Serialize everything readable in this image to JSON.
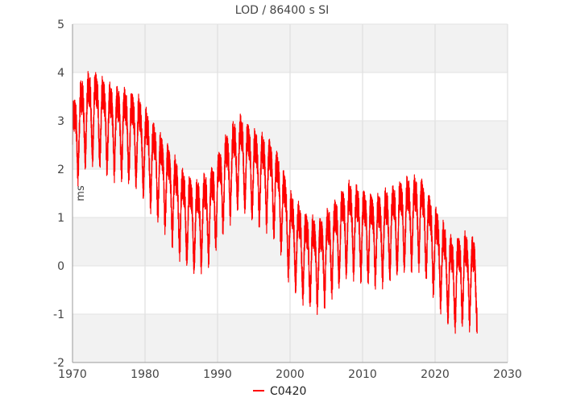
{
  "chart_data": {
    "type": "line",
    "title": "LOD / 86400 s SI",
    "xlabel": "",
    "ylabel": "ms",
    "xlim": [
      1970,
      2030
    ],
    "ylim": [
      -2,
      5
    ],
    "x_ticks": [
      "1970",
      "1980",
      "1990",
      "2000",
      "2010",
      "2020",
      "2030"
    ],
    "y_ticks": [
      "-2",
      "-1",
      "0",
      "1",
      "2",
      "3",
      "4",
      "5"
    ],
    "grid": true,
    "legend_position": "bottom-center",
    "series": [
      {
        "name": "C0420",
        "color": "#ff0000",
        "trend": [
          {
            "x": 1970.0,
            "y": 2.6
          },
          {
            "x": 1971.5,
            "y": 3.1
          },
          {
            "x": 1973.0,
            "y": 3.2
          },
          {
            "x": 1975.0,
            "y": 3.0
          },
          {
            "x": 1977.0,
            "y": 2.9
          },
          {
            "x": 1979.0,
            "y": 2.7
          },
          {
            "x": 1981.0,
            "y": 2.2
          },
          {
            "x": 1983.0,
            "y": 1.8
          },
          {
            "x": 1985.0,
            "y": 1.2
          },
          {
            "x": 1987.0,
            "y": 0.9
          },
          {
            "x": 1989.0,
            "y": 1.2
          },
          {
            "x": 1991.0,
            "y": 1.9
          },
          {
            "x": 1993.0,
            "y": 2.3
          },
          {
            "x": 1995.0,
            "y": 2.0
          },
          {
            "x": 1997.0,
            "y": 1.9
          },
          {
            "x": 1998.5,
            "y": 1.5
          },
          {
            "x": 2000.0,
            "y": 0.7
          },
          {
            "x": 2002.0,
            "y": 0.3
          },
          {
            "x": 2004.0,
            "y": 0.2
          },
          {
            "x": 2006.0,
            "y": 0.5
          },
          {
            "x": 2008.0,
            "y": 0.9
          },
          {
            "x": 2010.0,
            "y": 0.8
          },
          {
            "x": 2012.0,
            "y": 0.7
          },
          {
            "x": 2014.0,
            "y": 0.8
          },
          {
            "x": 2016.0,
            "y": 1.0
          },
          {
            "x": 2018.0,
            "y": 1.1
          },
          {
            "x": 2019.5,
            "y": 0.6
          },
          {
            "x": 2021.0,
            "y": 0.1
          },
          {
            "x": 2022.5,
            "y": -0.3
          },
          {
            "x": 2024.0,
            "y": -0.1
          },
          {
            "x": 2025.8,
            "y": -0.2
          }
        ],
        "annual_amplitude": 0.65
      }
    ]
  }
}
